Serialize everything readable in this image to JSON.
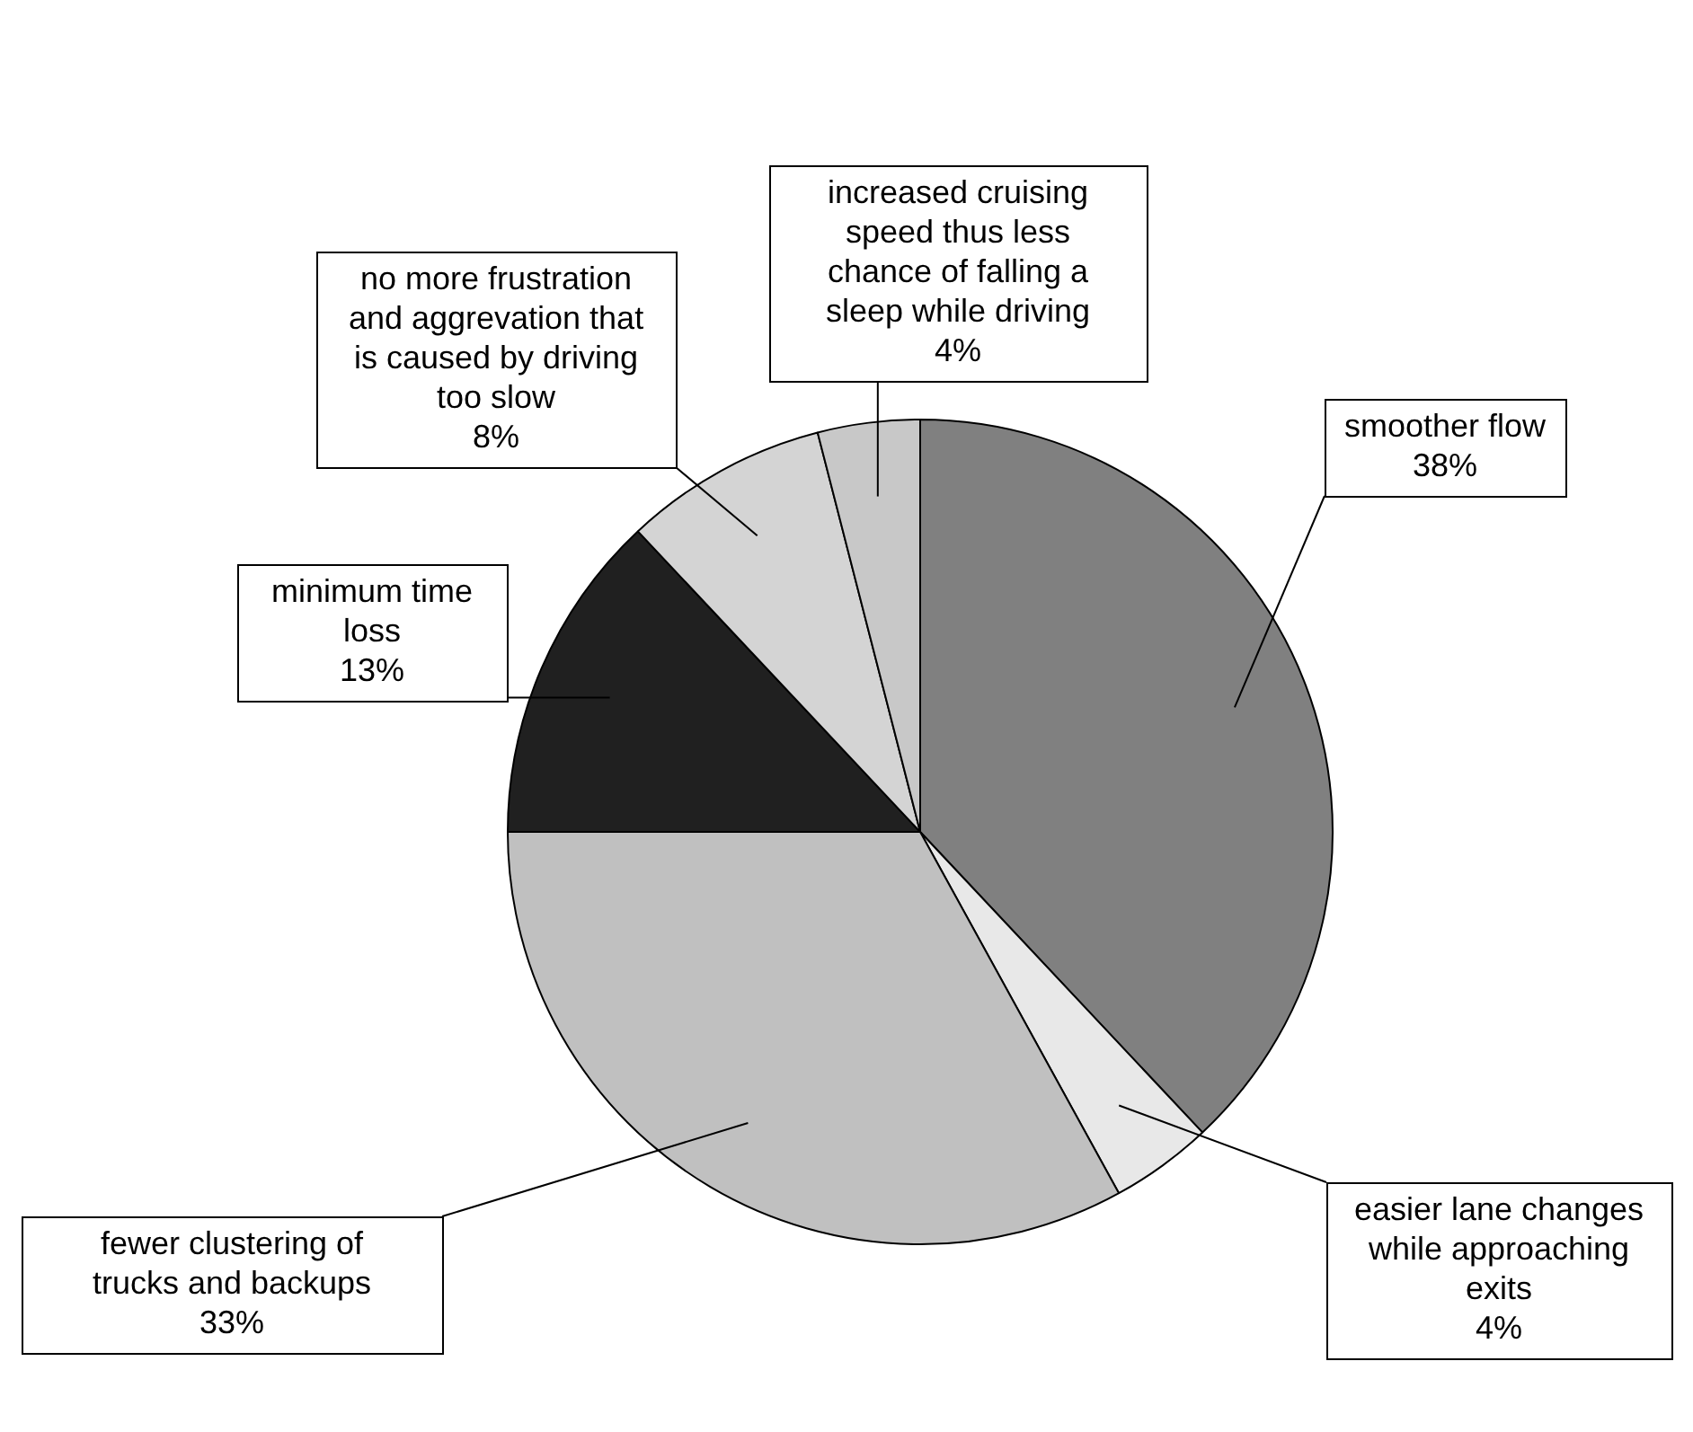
{
  "chart_data": {
    "type": "pie",
    "categories": [
      "smoother flow",
      "easier lane changes while approaching exits",
      "fewer clustering of trucks and backups",
      "minimum time loss",
      "no more frustration and aggrevation that is caused by driving too slow",
      "increased cruising speed thus less chance of falling a sleep while driving"
    ],
    "values": [
      38,
      4,
      33,
      13,
      8,
      4
    ],
    "value_labels": [
      "38%",
      "4%",
      "33%",
      "13%",
      "8%",
      "4%"
    ],
    "colors": [
      "#808080",
      "#e8e8e8",
      "#c0c0c0",
      "#202020",
      "#d4d4d4",
      "#c8c8c8"
    ],
    "legend": false
  }
}
